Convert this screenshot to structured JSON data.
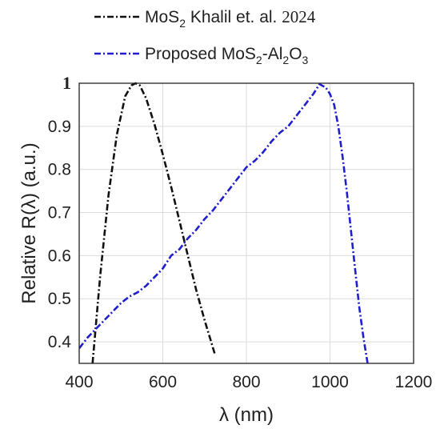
{
  "chart_data": {
    "type": "line",
    "xlabel": "λ (nm)",
    "ylabel": "Relative R(λ) (a.u.)",
    "xlim": [
      400,
      1200
    ],
    "ylim": [
      0.35,
      1.0
    ],
    "x_ticks": [
      "400",
      "600",
      "800",
      "1000",
      "1200"
    ],
    "y_ticks": [
      "0.4",
      "0.5",
      "0.6",
      "0.7",
      "0.8",
      "0.9",
      "1"
    ],
    "grid": true,
    "legend_position": "top",
    "series": [
      {
        "name": "MoS2 Khalil et. al. 2024",
        "color": "#111111",
        "style": "dash-dot",
        "x": [
          432,
          450,
          470,
          490,
          510,
          525,
          535,
          545,
          560,
          580,
          600,
          620,
          640,
          660,
          680,
          700,
          725
        ],
        "y": [
          0.35,
          0.55,
          0.74,
          0.88,
          0.97,
          0.995,
          1.0,
          0.995,
          0.965,
          0.905,
          0.835,
          0.76,
          0.68,
          0.6,
          0.52,
          0.45,
          0.37
        ]
      },
      {
        "name": "Proposed MoS2-Al2O3",
        "color": "#1f1fd0",
        "style": "dash-dot",
        "x": [
          400,
          420,
          440,
          460,
          480,
          500,
          520,
          540,
          560,
          580,
          600,
          620,
          640,
          660,
          680,
          700,
          720,
          740,
          760,
          780,
          800,
          820,
          840,
          860,
          880,
          900,
          920,
          940,
          960,
          975,
          990,
          1000,
          1010,
          1020,
          1030,
          1040,
          1050,
          1060,
          1070,
          1080,
          1090
        ],
        "y": [
          0.385,
          0.41,
          0.43,
          0.45,
          0.47,
          0.49,
          0.505,
          0.515,
          0.53,
          0.55,
          0.57,
          0.6,
          0.615,
          0.64,
          0.66,
          0.685,
          0.705,
          0.73,
          0.755,
          0.78,
          0.805,
          0.82,
          0.84,
          0.865,
          0.885,
          0.9,
          0.925,
          0.95,
          0.975,
          0.998,
          0.99,
          0.975,
          0.95,
          0.9,
          0.83,
          0.75,
          0.66,
          0.57,
          0.48,
          0.41,
          0.35
        ]
      }
    ]
  },
  "legend": {
    "items": [
      {
        "prefix": "MoS",
        "sub1": "2",
        "mid": " Khalil et. al. ",
        "year": "2024"
      },
      {
        "prefix": "Proposed MoS",
        "sub1": "2",
        "mid": "-Al",
        "sub2": "2",
        "mid2": "O",
        "sub3": "3"
      }
    ]
  }
}
